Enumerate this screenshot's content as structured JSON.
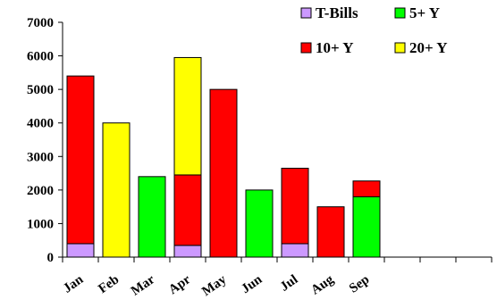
{
  "chart_data": {
    "type": "bar",
    "stacked": true,
    "title": "",
    "xlabel": "",
    "ylabel": "",
    "ylim": [
      0,
      7000
    ],
    "y_ticks": [
      0,
      1000,
      2000,
      3000,
      4000,
      5000,
      6000,
      7000
    ],
    "categories": [
      "Jan",
      "Feb",
      "Mar",
      "Apr",
      "May",
      "Jun",
      "Jul",
      "Aug",
      "Sep",
      "",
      "",
      ""
    ],
    "series": [
      {
        "name": "T-Bills",
        "color": "#cc99ff",
        "values": [
          400,
          0,
          0,
          350,
          0,
          0,
          400,
          0,
          0,
          0,
          0,
          0
        ]
      },
      {
        "name": "5+ Y",
        "color": "#00ff00",
        "values": [
          0,
          0,
          2400,
          0,
          0,
          2000,
          0,
          0,
          1800,
          0,
          0,
          0
        ]
      },
      {
        "name": "10+ Y",
        "color": "#ff0000",
        "values": [
          5000,
          0,
          0,
          2100,
          5000,
          0,
          2250,
          1500,
          470,
          0,
          0,
          0
        ]
      },
      {
        "name": "20+ Y",
        "color": "#ffff00",
        "values": [
          0,
          4000,
          0,
          3500,
          0,
          0,
          0,
          0,
          0,
          0,
          0,
          0
        ]
      }
    ],
    "grid": false,
    "legend_position": "top-right"
  }
}
